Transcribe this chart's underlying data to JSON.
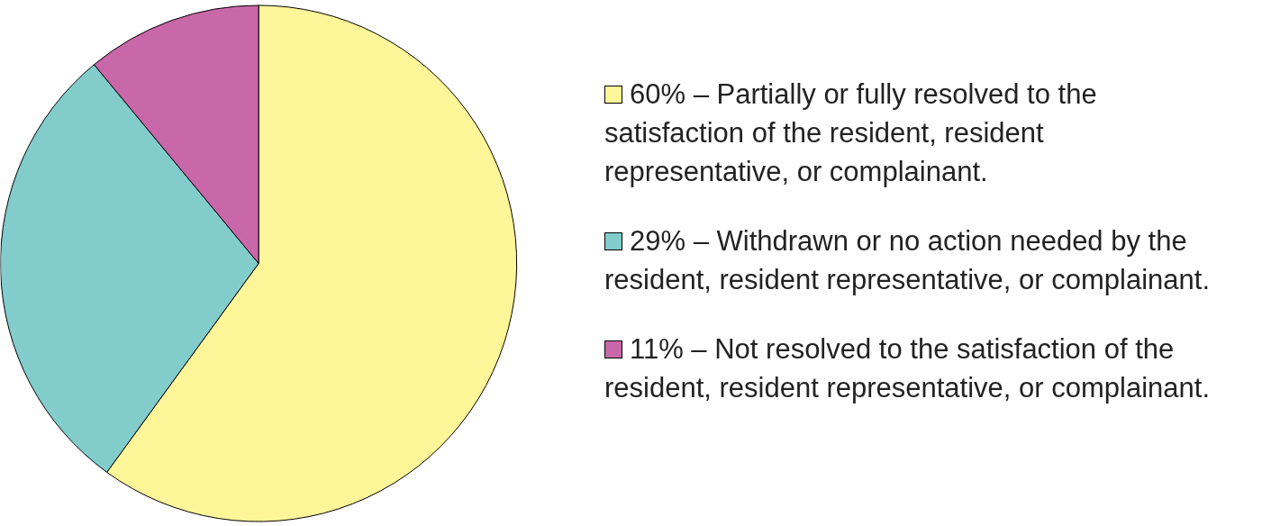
{
  "chart_data": {
    "type": "pie",
    "categories": [
      "60% – Partially or fully resolved to the satisfaction of the resident, resident representative, or complainant.",
      "29% – Withdrawn or no action needed by the resident, resident representative, or complainant.",
      "11% – Not resolved to the satisfaction of the resident, resident representative, or complainant."
    ],
    "values": [
      60,
      29,
      11
    ],
    "colors": [
      "#fff599",
      "#82cdcc",
      "#c968a8"
    ],
    "legend": "right"
  }
}
